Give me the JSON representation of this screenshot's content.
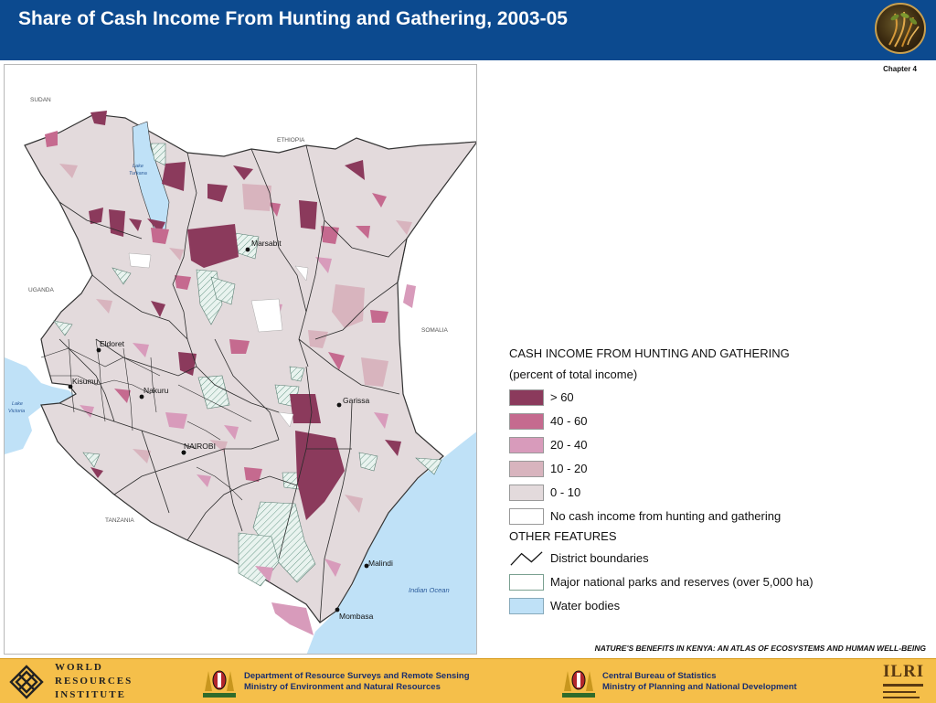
{
  "header": {
    "title": "Share of Cash Income From Hunting and Gathering, 2003-05",
    "chapter": "Chapter 4",
    "brand_color": "#0c4a8f"
  },
  "map": {
    "country_labels": {
      "sudan": "SUDAN",
      "ethiopia": "ETHIOPIA",
      "uganda": "UGANDA",
      "somalia": "SOMALIA",
      "tanzania": "TANZANIA"
    },
    "water_labels": {
      "lake_turkana_1": "Lake",
      "lake_turkana_2": "Turkana",
      "lake_victoria_1": "Lake",
      "lake_victoria_2": "Victoria",
      "indian_ocean": "Indian Ocean"
    },
    "cities": {
      "marsabit": "Marsabit",
      "eldoret": "Eldoret",
      "kisumu": "Kisumu",
      "nakuru": "Nakuru",
      "garissa": "Garissa",
      "nairobi": "NAIROBI",
      "malindi": "Malindi",
      "mombasa": "Mombasa"
    }
  },
  "legend": {
    "heading": "CASH INCOME FROM HUNTING AND GATHERING",
    "subheading": "(percent of total income)",
    "classes": [
      {
        "label": "> 60",
        "color": "#8b3a5c"
      },
      {
        "label": "40 - 60",
        "color": "#c56a8f"
      },
      {
        "label": "20 - 40",
        "color": "#d89bbb"
      },
      {
        "label": "10 - 20",
        "color": "#d8b4be"
      },
      {
        "label": "0 - 10",
        "color": "#e3dadc"
      },
      {
        "label": "No cash income from hunting and gathering",
        "color": "#ffffff"
      }
    ],
    "other_heading": "OTHER FEATURES",
    "features": {
      "district_boundaries": "District boundaries",
      "parks": "Major national parks and reserves (over 5,000 ha)",
      "water": "Water bodies"
    },
    "water_color": "#bfe1f7",
    "park_color": "#d7ece6"
  },
  "footer": {
    "atlas_note": "NATURE'S BENEFITS IN KENYA: AN ATLAS OF ECOSYSTEMS AND HUMAN WELL-BEING",
    "wri_line1": "WORLD",
    "wri_line2": "RESOURCES",
    "wri_line3": "INSTITUTE",
    "dept1_line1": "Department of Resource Surveys and Remote Sensing",
    "dept1_line2": "Ministry of Environment and Natural Resources",
    "dept2_line1": "Central Bureau of Statistics",
    "dept2_line2": "Ministry of Planning and National Development",
    "ilri": "ILRI",
    "footer_color": "#f5bf4a"
  }
}
